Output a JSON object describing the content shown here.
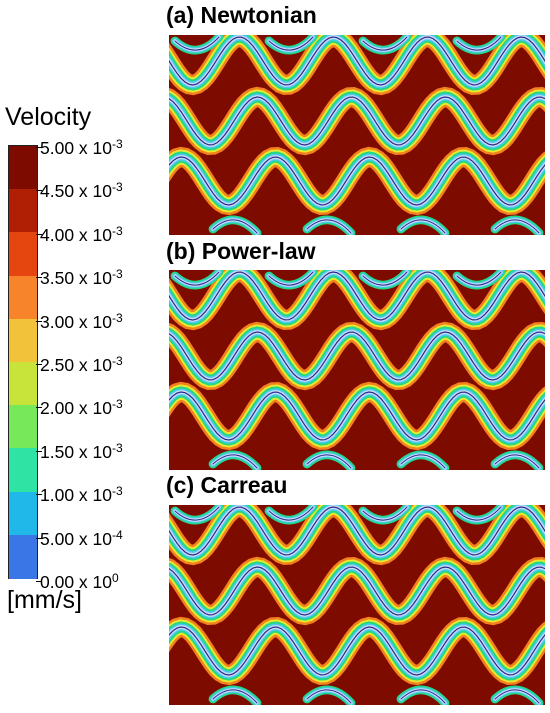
{
  "panels": [
    {
      "label": "(a) Newtonian"
    },
    {
      "label": "(b) Power-law"
    },
    {
      "label": "(c) Carreau"
    }
  ],
  "legend": {
    "title": "Velocity",
    "unit": "[mm/s]",
    "ticks": [
      {
        "mantissa": "5.00 x 10",
        "exp": "-3"
      },
      {
        "mantissa": "4.50 x 10",
        "exp": "-3"
      },
      {
        "mantissa": "4.00 x 10",
        "exp": "-3"
      },
      {
        "mantissa": "3.50 x 10",
        "exp": "-3"
      },
      {
        "mantissa": "3.00 x 10",
        "exp": "-3"
      },
      {
        "mantissa": "2.50 x 10",
        "exp": "-3"
      },
      {
        "mantissa": "2.00 x 10",
        "exp": "-3"
      },
      {
        "mantissa": "1.50 x 10",
        "exp": "-3"
      },
      {
        "mantissa": "1.00 x 10",
        "exp": "-3"
      },
      {
        "mantissa": "5.00 x 10",
        "exp": "-4"
      },
      {
        "mantissa": "0.00 x 10",
        "exp": "0"
      }
    ],
    "colors": [
      "#7e0b00",
      "#b01f04",
      "#e5450e",
      "#f7832b",
      "#f2c23b",
      "#c8e43a",
      "#77e85a",
      "#2ee3a4",
      "#20b8e8",
      "#3b76e6",
      "#34307e"
    ]
  },
  "field_colors": {
    "background": "#7e0b00",
    "orange": "#f4801e",
    "yellow": "#e8e82e",
    "green": "#22d884",
    "cyan": "#4cc8f2",
    "pale_blue": "#c8dcf6",
    "navy": "#2a2a8a"
  }
}
